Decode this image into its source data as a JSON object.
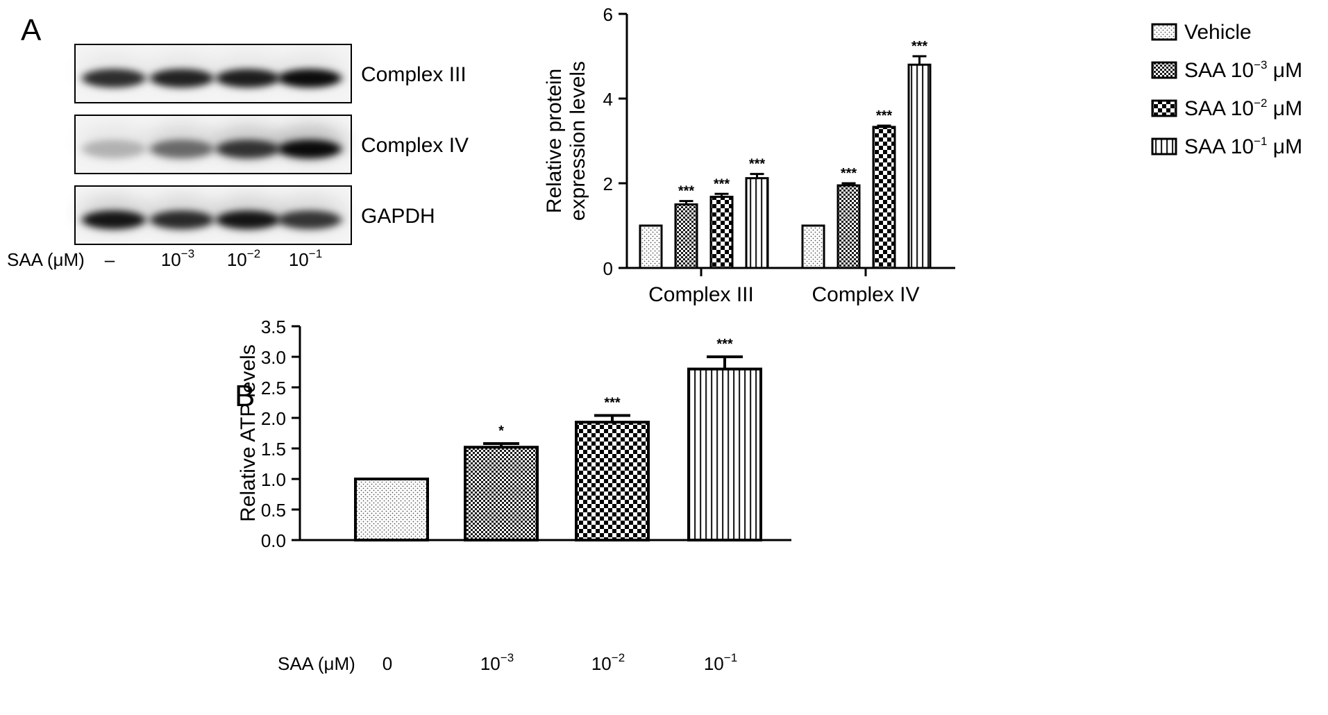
{
  "panels": {
    "a": {
      "letter": "A"
    },
    "b": {
      "letter": "B"
    }
  },
  "blot": {
    "rows": [
      {
        "label": "Complex III",
        "intensities": [
          0.85,
          0.9,
          0.92,
          1.0
        ],
        "smear": 0.15
      },
      {
        "label": "Complex IV",
        "intensities": [
          0.25,
          0.55,
          0.8,
          1.0
        ],
        "smear": 0.55
      },
      {
        "label": "GAPDH",
        "intensities": [
          0.95,
          0.85,
          0.95,
          0.8
        ],
        "smear": 0.35
      }
    ],
    "lane_caption": "SAA (μM)",
    "lanes": [
      {
        "base": "–",
        "exp": ""
      },
      {
        "base": "10",
        "exp": "−3"
      },
      {
        "base": "10",
        "exp": "−2"
      },
      {
        "base": "10",
        "exp": "−1"
      }
    ]
  },
  "chart_data": [
    {
      "type": "bar",
      "panel": "A",
      "categories": [
        "Complex III",
        "Complex IV"
      ],
      "ylabel_lines": [
        "Relative protein",
        "expression levels"
      ],
      "ylim": [
        0,
        6
      ],
      "yticks": [
        "0",
        "2",
        "4",
        "6"
      ],
      "series": [
        {
          "name": "Vehicle",
          "name_base": "Vehicle",
          "name_exp": "",
          "name_unit": "",
          "pattern": "dots",
          "values": [
            1.0,
            1.0
          ],
          "errors": [
            0,
            0
          ],
          "stars": [
            "",
            ""
          ]
        },
        {
          "name": "SAA 10−3 μM",
          "name_base": "SAA 10",
          "name_exp": "−3",
          "name_unit": " μM",
          "pattern": "finecheck",
          "values": [
            1.5,
            1.95
          ],
          "errors": [
            0.08,
            0.05
          ],
          "stars": [
            "***",
            "***"
          ]
        },
        {
          "name": "SAA 10−2 μM",
          "name_base": "SAA 10",
          "name_exp": "−2",
          "name_unit": " μM",
          "pattern": "check",
          "values": [
            1.68,
            3.33
          ],
          "errors": [
            0.07,
            0.03
          ],
          "stars": [
            "***",
            "***"
          ]
        },
        {
          "name": "SAA 10−1 μM",
          "name_base": "SAA 10",
          "name_exp": "−1",
          "name_unit": " μM",
          "pattern": "vstripes",
          "values": [
            2.12,
            4.8
          ],
          "errors": [
            0.1,
            0.2
          ],
          "stars": [
            "***",
            "***"
          ]
        }
      ],
      "legend": "top-right",
      "grid": false
    },
    {
      "type": "bar",
      "panel": "B",
      "ylabel": "Relative ATP levels",
      "xlabel": "SAA (μM)",
      "ylim": [
        0,
        3.5
      ],
      "yticks": [
        "0.0",
        "0.5",
        "1.0",
        "1.5",
        "2.0",
        "2.5",
        "3.0",
        "3.5"
      ],
      "bars": [
        {
          "base": "0",
          "exp": "",
          "pattern": "dots",
          "value": 1.0,
          "error": 0,
          "stars": ""
        },
        {
          "base": "10",
          "exp": "−3",
          "pattern": "finecheck",
          "value": 1.52,
          "error": 0.06,
          "stars": "*"
        },
        {
          "base": "10",
          "exp": "−2",
          "pattern": "check",
          "value": 1.93,
          "error": 0.11,
          "stars": "***"
        },
        {
          "base": "10",
          "exp": "−1",
          "pattern": "vstripes",
          "value": 2.8,
          "error": 0.2,
          "stars": "***"
        }
      ],
      "grid": false
    }
  ]
}
